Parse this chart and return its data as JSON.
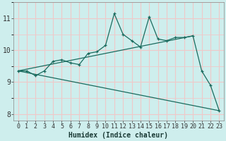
{
  "xlabel": "Humidex (Indice chaleur)",
  "background_color": "#ceeeed",
  "grid_color": "#f0c8c8",
  "line_color": "#1a6b5e",
  "xlim": [
    -0.5,
    23.5
  ],
  "ylim": [
    7.8,
    11.5
  ],
  "xtick_labels": [
    "0",
    "1",
    "2",
    "3",
    "4",
    "5",
    "6",
    "7",
    "8",
    "9",
    "10",
    "11",
    "12",
    "13",
    "14",
    "15",
    "16",
    "17",
    "18",
    "19",
    "20",
    "21",
    "22",
    "23"
  ],
  "ytick_values": [
    8,
    9,
    10,
    11
  ],
  "main_series_x": [
    0,
    1,
    2,
    3,
    4,
    5,
    6,
    7,
    8,
    9,
    10,
    11,
    12,
    13,
    14,
    15,
    16,
    17,
    18,
    19,
    20,
    21,
    22,
    23
  ],
  "main_series_y": [
    9.35,
    9.35,
    9.2,
    9.35,
    9.65,
    9.7,
    9.6,
    9.55,
    9.9,
    9.95,
    10.15,
    11.15,
    10.5,
    10.3,
    10.1,
    11.05,
    10.35,
    10.3,
    10.4,
    10.4,
    10.45,
    9.35,
    8.9,
    8.1
  ],
  "upper_line_x": [
    0,
    20
  ],
  "upper_line_y": [
    9.35,
    10.45
  ],
  "lower_line_x": [
    0,
    23
  ],
  "lower_line_y": [
    9.35,
    8.1
  ],
  "font_size_xlabel": 7,
  "font_size_ticks": 6
}
